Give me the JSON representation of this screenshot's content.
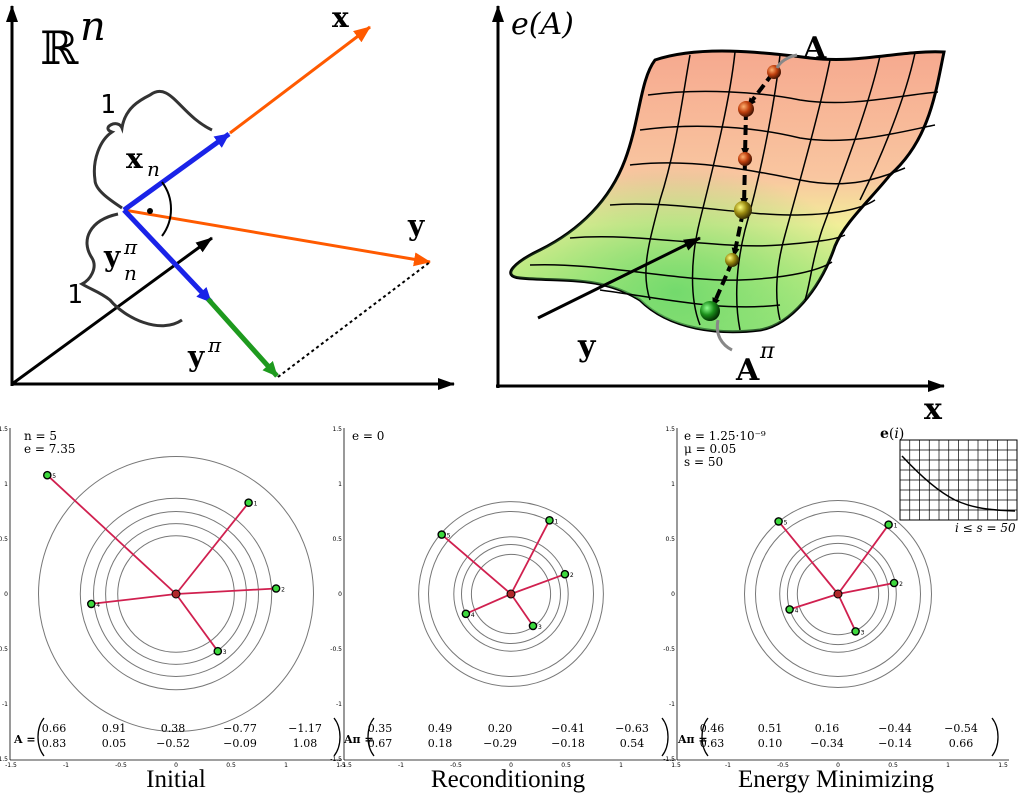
{
  "top_left": {
    "space_label": "ℝ",
    "space_exp": "n",
    "x_label": "x",
    "y_label": "y",
    "xn_label": "x",
    "xn_sub": "n",
    "ypin_label": "y",
    "ypin_sup": "π",
    "ypin_sub": "n",
    "ypi_label": "y",
    "ypi_sup": "π",
    "one_top": "1",
    "one_bottom": "1"
  },
  "top_right": {
    "energy_label": "e(A)",
    "A_label": "A",
    "Api_label": "A",
    "Api_sup": "π",
    "x_label": "x",
    "y_label": "y"
  },
  "axis_ticks": {
    "x": [
      "-1.5",
      "-1",
      "-0.5",
      "0",
      "0.5",
      "1",
      "1.5"
    ],
    "y": [
      "1.5",
      "1",
      "0.5",
      "0",
      "-0.5",
      "-1",
      "-1.5"
    ]
  },
  "panels": [
    {
      "caption": "Initial",
      "annotations": [
        "n = 5",
        "e = 7.35"
      ],
      "matrix_label": "A =",
      "matrix": [
        [
          "0.66",
          "0.91",
          "0.38",
          "−0.77",
          "−1.17"
        ],
        [
          "0.83",
          "0.05",
          "−0.52",
          "−0.09",
          "1.08"
        ]
      ],
      "points": [
        [
          0.66,
          0.83
        ],
        [
          0.91,
          0.05
        ],
        [
          0.38,
          -0.52
        ],
        [
          -0.77,
          -0.09
        ],
        [
          -1.17,
          1.08
        ]
      ],
      "point_labels": [
        "1",
        "2",
        "3",
        "4",
        "5"
      ],
      "circle_radii": [
        0.53,
        0.64,
        0.75,
        0.87,
        1.25
      ]
    },
    {
      "caption": "Reconditioning",
      "annotations": [
        "e = 0"
      ],
      "matrix_label": "Aπ =",
      "matrix": [
        [
          "0.35",
          "0.49",
          "0.20",
          "−0.41",
          "−0.63"
        ],
        [
          "0.67",
          "0.18",
          "−0.29",
          "−0.18",
          "0.54"
        ]
      ],
      "points": [
        [
          0.35,
          0.67
        ],
        [
          0.49,
          0.18
        ],
        [
          0.2,
          -0.29
        ],
        [
          -0.41,
          -0.18
        ],
        [
          -0.63,
          0.54
        ]
      ],
      "point_labels": [
        "1",
        "2",
        "3",
        "4",
        "5"
      ],
      "circle_radii": [
        0.36,
        0.45,
        0.52,
        0.75,
        0.84
      ]
    },
    {
      "caption": "Energy Minimizing",
      "annotations": [
        "e = 1.25·10⁻⁹",
        "μ = 0.05",
        "s = 50"
      ],
      "matrix_label": "Aπ =",
      "matrix": [
        [
          "0.46",
          "0.51",
          "0.16",
          "−0.44",
          "−0.54"
        ],
        [
          "0.63",
          "0.10",
          "−0.34",
          "−0.14",
          "0.66"
        ]
      ],
      "points": [
        [
          0.46,
          0.63
        ],
        [
          0.51,
          0.1
        ],
        [
          0.16,
          -0.34
        ],
        [
          -0.44,
          -0.14
        ],
        [
          -0.54,
          0.66
        ]
      ],
      "point_labels": [
        "1",
        "2",
        "3",
        "4",
        "5"
      ],
      "circle_radii": [
        0.37,
        0.46,
        0.53,
        0.75,
        0.85
      ]
    }
  ],
  "inset": {
    "title": "e(i)",
    "xlabel": "i ≤ s = 50"
  }
}
